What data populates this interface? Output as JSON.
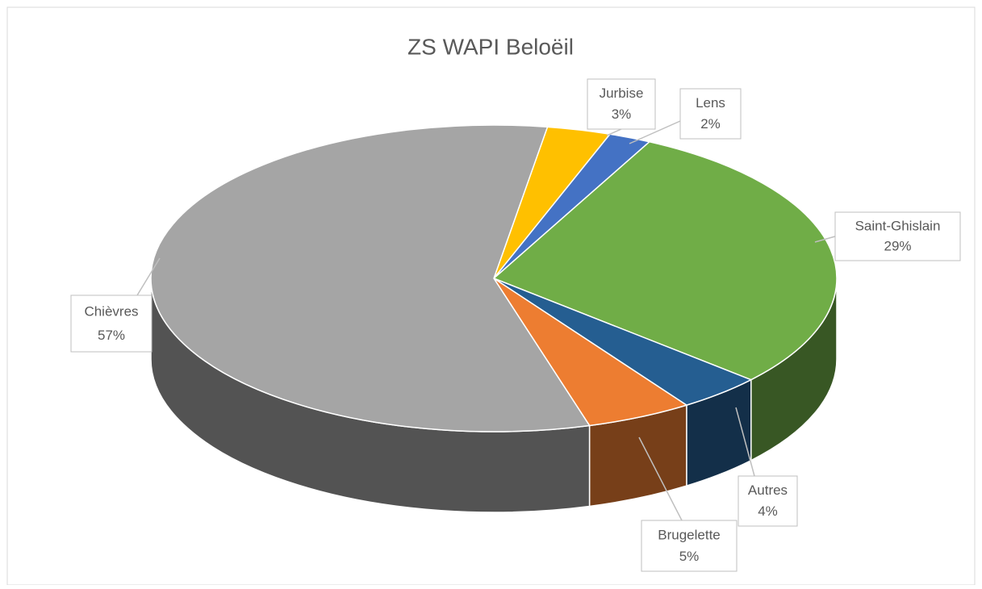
{
  "chart_data": {
    "type": "pie",
    "title": "ZS WAPI Beloëil",
    "categories": [
      "Jurbise",
      "Lens",
      "Saint-Ghislain",
      "Autres",
      "Brugelette",
      "Chièvres"
    ],
    "values": [
      3,
      2,
      29,
      4,
      5,
      57
    ],
    "value_labels": [
      "3%",
      "2%",
      "29%",
      "4%",
      "5%",
      "57%"
    ],
    "colors": [
      "#ffc000",
      "#4472c4",
      "#70ad47",
      "#255e91",
      "#ed7d31",
      "#a5a5a5"
    ]
  }
}
